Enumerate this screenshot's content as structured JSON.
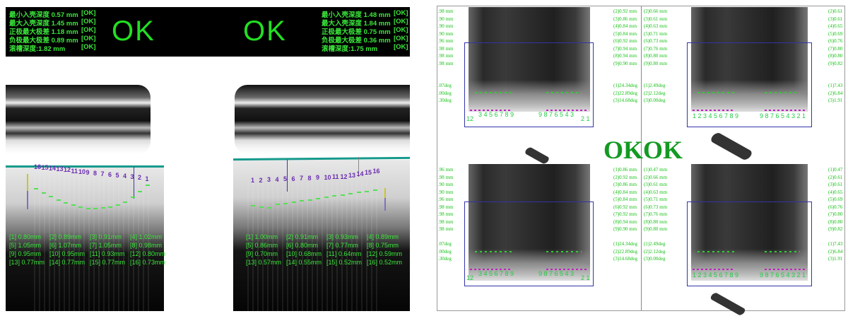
{
  "left_summary": {
    "rows_left": [
      {
        "label": "最小入壳深度 0.57 mm",
        "status": "[OK]"
      },
      {
        "label": "最大入壳深度 1.45 mm",
        "status": "[OK]"
      },
      {
        "label": "正极最大极差 1.18 mm",
        "status": "[OK]"
      },
      {
        "label": "负极最大极差 0.89 mm",
        "status": "[OK]"
      },
      {
        "label": "滚槽深度:1.82 mm",
        "status": "[OK]"
      }
    ],
    "rows_right": [
      {
        "label": "最小入壳深度 1.48 mm",
        "status": "[OK]"
      },
      {
        "label": "最大入壳深度 1.84 mm",
        "status": "[OK]"
      },
      {
        "label": "正极最大极差 0.75 mm",
        "status": "[OK]"
      },
      {
        "label": "负极最大极差 0.36 mm",
        "status": "[OK]"
      },
      {
        "label": "滚槽深度:1.75 mm",
        "status": "[OK]"
      }
    ],
    "result_left": "OK",
    "result_right": "OK",
    "result_color": "#22e022"
  },
  "left_image": {
    "labels": [
      "16",
      "15",
      "14",
      "13",
      "12",
      "11",
      "10",
      "9",
      "8",
      "7",
      "6",
      "5",
      "4",
      "3",
      "2",
      "1"
    ],
    "measurements": [
      "[1] 0.80mm",
      "[2] 0.89mm",
      "[3] 0.91mm",
      "[4] 1.02mm",
      "[5] 1.05mm",
      "[6] 1.07mm",
      "[7] 1.05mm",
      "[8] 0.98mm",
      "[9] 0.95mm",
      "[10] 0.95mm",
      "[11] 0.93mm",
      "[12] 0.80mm",
      "[13] 0.77mm",
      "[14] 0.77mm",
      "[15] 0.77mm",
      "[16] 0.73mm"
    ]
  },
  "right_image": {
    "labels": [
      "1",
      "2",
      "3",
      "4",
      "5",
      "6",
      "7",
      "8",
      "9",
      "10",
      "11",
      "12",
      "13",
      "14",
      "15",
      "16"
    ],
    "measurements": [
      "[1] 1.00mm",
      "[2] 0.91mm",
      "[3] 0.93mm",
      "[4] 0.89mm",
      "[5] 0.86mm",
      "[6] 0.80mm",
      "[7] 0.77mm",
      "[8] 0.75mm",
      "[9] 0.70mm",
      "[10] 0.68mm",
      "[11] 0.64mm",
      "[12] 0.59mm",
      "[13] 0.57mm",
      "[14] 0.55mm",
      "[15] 0.52mm",
      "[16] 0.52mm"
    ]
  },
  "right_panel": {
    "ok_left": "OK",
    "ok_right": "OK",
    "ok_color": "#139a22",
    "q1_left_mm": ".98 mm\n.90 mm\n.90 mm\n.90 mm\n.96 mm\n.98 mm\n.98 mm\n.98 mm",
    "q1_left_deg": ".07deg\n.00deg\n.30deg",
    "q1_right_mm": "(2)0.92 mm\n(3)0.86 mm\n(4)0.84 mm\n(5)0.84 mm\n(6)0.92 mm\n(7)0.94 mm\n(8)0.94 mm\n(9)0.90 mm",
    "q1_right_deg": "(1)24.34deg\n(2)22.89deg\n(3)14.68deg",
    "q2_left_mm": "(2)0.66 mm\n(3)0.61 mm\n(4)0.63 mm\n(5)0.71 mm\n(6)0.73 mm\n(7)0.76 mm\n(8)0.80 mm\n(9)0.80 mm",
    "q2_left_deg": "(1)2.49deg\n(2)2.12deg\n(3)0.00deg",
    "q2_right_mm": "(2)0.61\n(3)0.61\n(4)0.65\n(5)0.69\n(6)0.76\n(7)0.80\n(8)0.80\n(9)0.82",
    "q2_right_deg": "(1)7.43\n(2)6.84\n(3)1.91",
    "q3_left_mm": ".96 mm\n.98 mm\n.90 mm\n.90 mm\n.96 mm\n.98 mm\n.98 mm\n.98 mm\n.98 mm",
    "q3_left_deg": ".07deg\n.00deg\n.30deg",
    "q3_right_mm": "(1)0.86 mm\n(2)0.92 mm\n(3)0.86 mm\n(4)0.84 mm\n(5)0.84 mm\n(6)0.92 mm\n(7)0.92 mm\n(8)0.94 mm\n(9)0.90 mm",
    "q3_right_deg": "(1)24.34deg\n(2)22.89deg\n(3)14.68deg",
    "q4_left_mm": "(1)0.47 mm\n(2)0.66 mm\n(3)0.61 mm\n(4)0.63 mm\n(5)0.71 mm\n(6)0.73 mm\n(7)0.76 mm\n(8)0.80 mm\n(9)0.80 mm",
    "q4_left_deg": "(1)2.49deg\n(2)2.12deg\n(3)0.00deg",
    "q4_right_mm": "(1)0.47\n(2)0.61\n(3)0.61\n(4)0.65\n(5)0.69\n(6)0.76\n(7)0.80\n(8)0.80\n(9)0.82",
    "q4_right_deg": "(1)7.43\n(2)6.84\n(3)1.91",
    "tab_labels_left_a": "12",
    "tab_labels_left_b": "3 4 5 6 7 8 9",
    "tab_labels_left_c": "9 8 7 6 5 4 3",
    "tab_labels_left_d": "2 1",
    "tab_labels_right_a": "1 2 3 4 5 6 7 8 9",
    "tab_labels_right_b": "9 8 7 6 5 4 3 2 1"
  }
}
